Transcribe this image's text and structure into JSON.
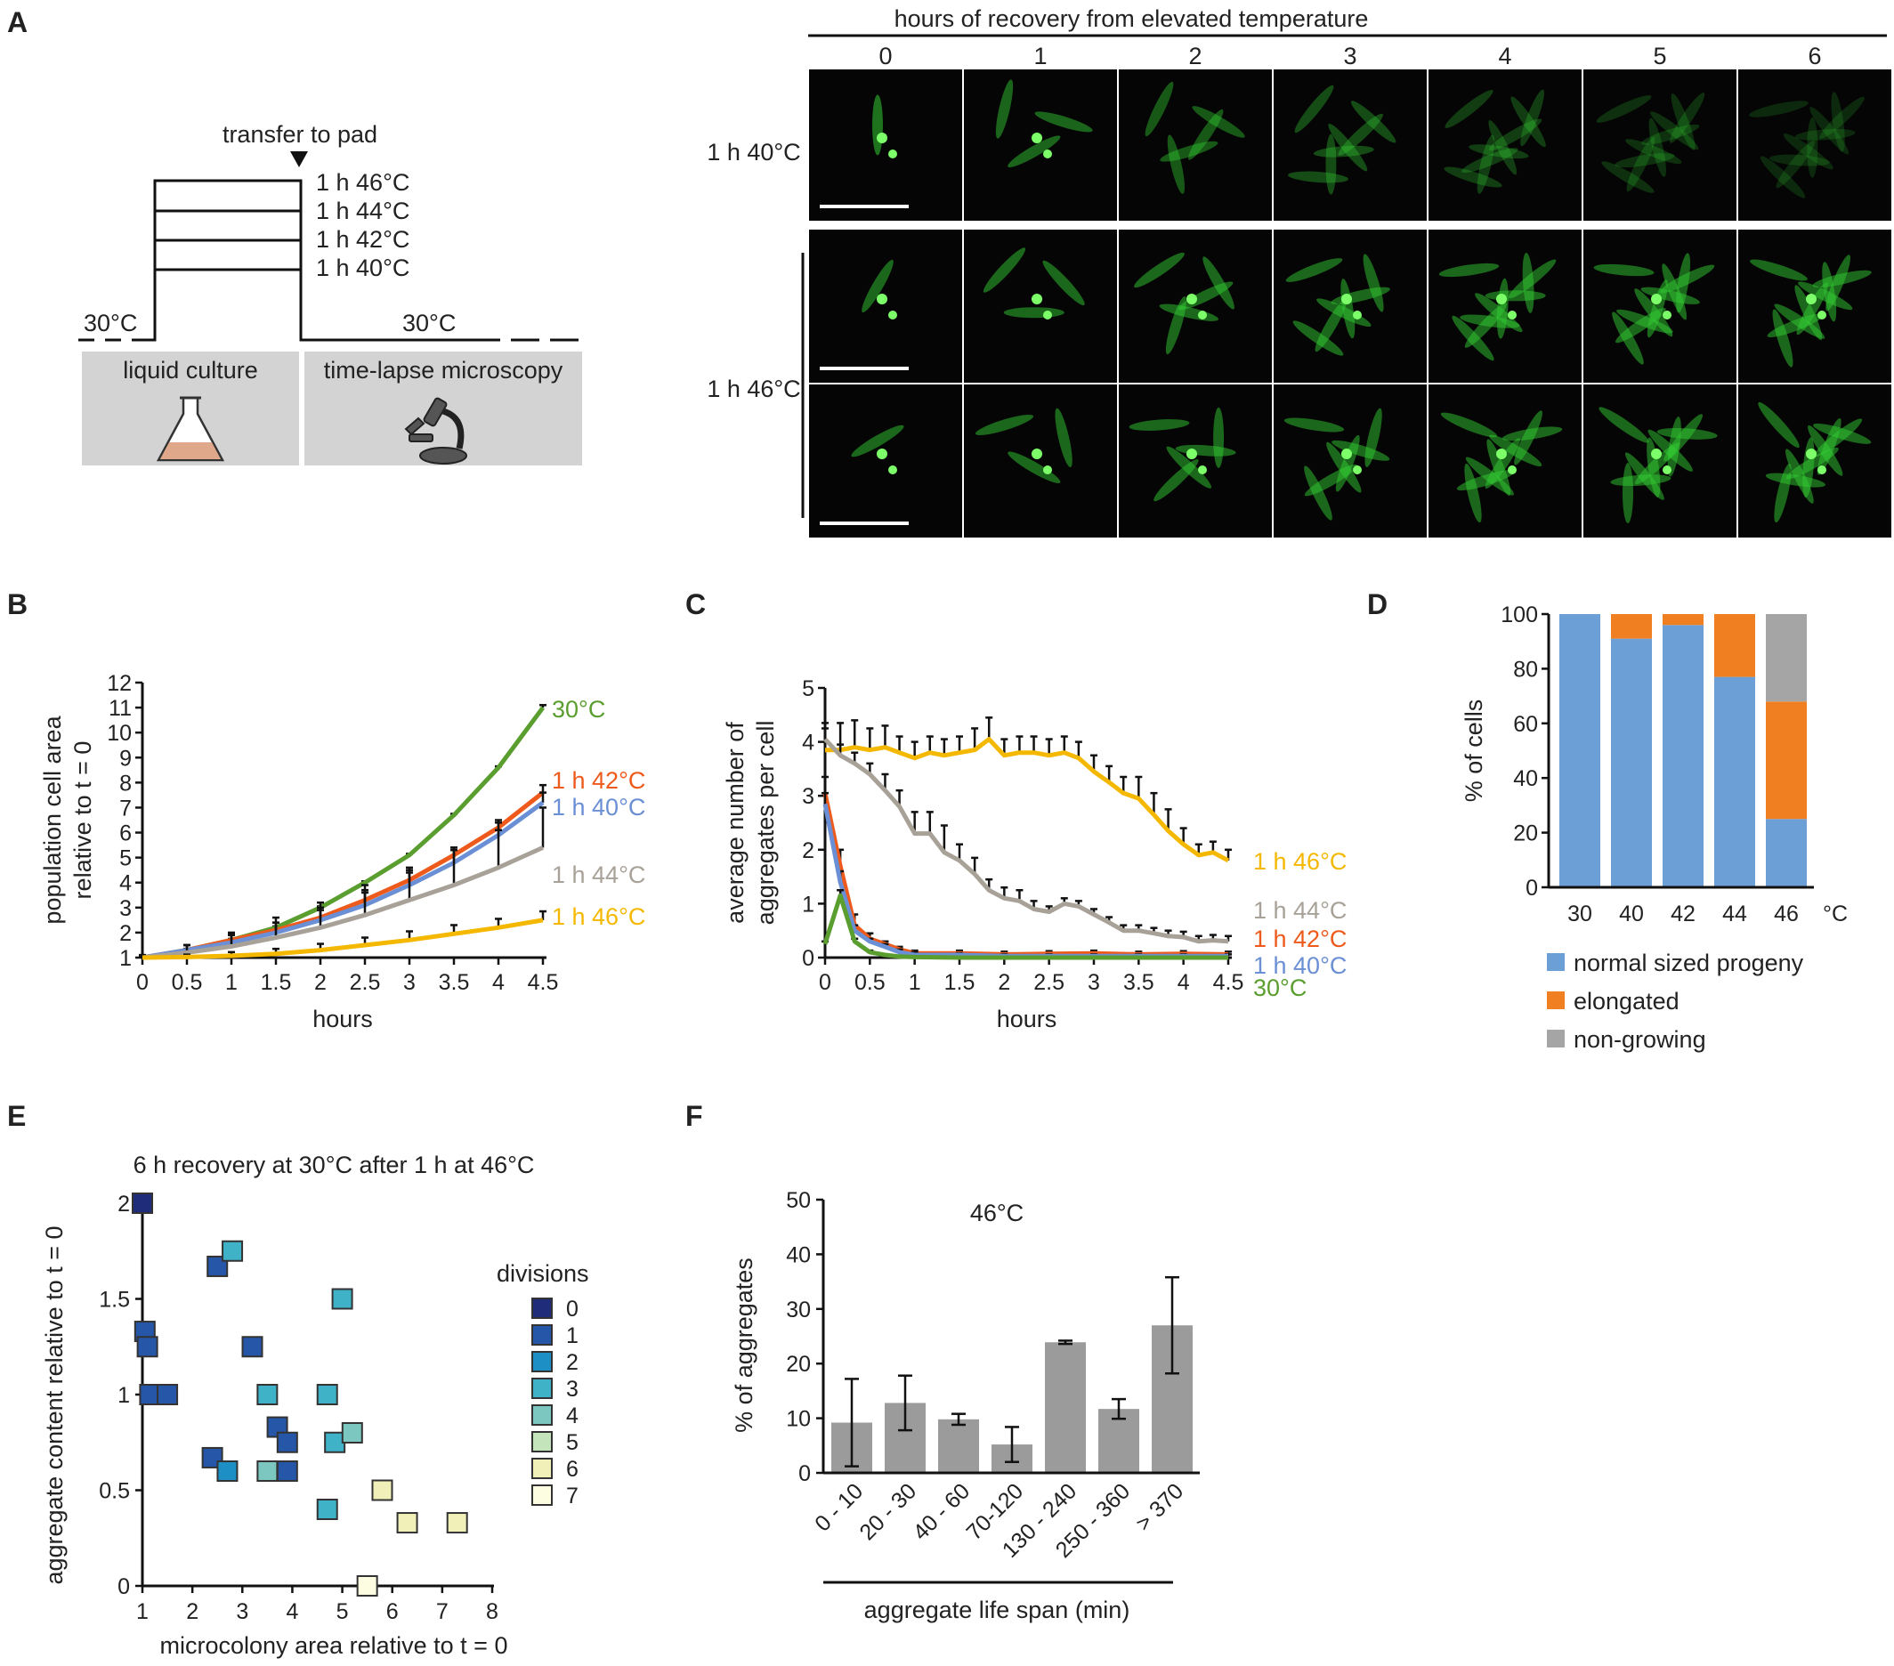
{
  "panel_labels": [
    "A",
    "B",
    "C",
    "D",
    "E",
    "F"
  ],
  "schematic": {
    "transfer_label": "transfer to pad",
    "temps": [
      "1 h 46°C",
      "1 h 44°C",
      "1 h 42°C",
      "1 h 40°C"
    ],
    "baseline_left": "30°C",
    "baseline_right": "30°C",
    "box_left": "liquid culture",
    "box_right": "time-lapse microscopy",
    "icons": [
      "flask-icon",
      "microscope-icon"
    ]
  },
  "micrographs": {
    "header": "hours of recovery from elevated temperature",
    "hours": [
      "0",
      "1",
      "2",
      "3",
      "4",
      "5",
      "6"
    ],
    "row_labels": [
      "1 h 40°C",
      "1 h 46°C"
    ],
    "background": "#050505",
    "cell_color": "#33cc33"
  },
  "chart_data": [
    {
      "panel": "B",
      "type": "line",
      "xlabel": "hours",
      "ylabel": "population cell area\nrelative to t = 0",
      "xlim": [
        0,
        4.5
      ],
      "ylim": [
        1,
        12
      ],
      "xticks": [
        "0",
        "0.5",
        "1",
        "1.5",
        "2",
        "2.5",
        "3",
        "3.5",
        "4",
        "4.5"
      ],
      "yticks": [
        "1",
        "2",
        "3",
        "4",
        "5",
        "6",
        "7",
        "8",
        "9",
        "10",
        "11",
        "12"
      ],
      "series": [
        {
          "name": "30°C",
          "color": "#5a9e2f",
          "x": [
            0,
            0.5,
            1,
            1.5,
            2,
            2.5,
            3,
            3.5,
            4,
            4.5
          ],
          "y": [
            1,
            1.3,
            1.7,
            2.2,
            3,
            4,
            5.1,
            6.7,
            8.6,
            11
          ],
          "err": [
            0.05,
            0.05,
            0.05,
            0.05,
            0.05,
            0.05,
            0.05,
            0.05,
            0.05,
            0.1
          ]
        },
        {
          "name": "1 h 42°C",
          "color": "#ee5a1c",
          "x": [
            0,
            0.5,
            1,
            1.5,
            2,
            2.5,
            3,
            3.5,
            4,
            4.5
          ],
          "y": [
            1,
            1.3,
            1.7,
            2.1,
            2.6,
            3.3,
            4.1,
            5.1,
            6.2,
            7.6
          ],
          "err": [
            0.1,
            0.2,
            0.3,
            0.3,
            0.3,
            0.3,
            0.3,
            0.3,
            0.3,
            0.3
          ]
        },
        {
          "name": "1 h 40°C",
          "color": "#6b8fd4",
          "x": [
            0,
            0.5,
            1,
            1.5,
            2,
            2.5,
            3,
            3.5,
            4,
            4.5
          ],
          "y": [
            1,
            1.3,
            1.6,
            2,
            2.5,
            3.1,
            3.9,
            4.8,
            5.9,
            7.2
          ],
          "err": [
            0.1,
            0.2,
            0.3,
            0.4,
            0.5,
            0.6,
            0.6,
            0.6,
            0.5,
            0.4
          ]
        },
        {
          "name": "1 h 44°C",
          "color": "#a8a198",
          "x": [
            0,
            0.5,
            1,
            1.5,
            2,
            2.5,
            3,
            3.5,
            4,
            4.5
          ],
          "y": [
            1,
            1.2,
            1.45,
            1.8,
            2.2,
            2.7,
            3.3,
            3.9,
            4.6,
            5.4
          ],
          "err": [
            0.1,
            0.3,
            0.5,
            0.8,
            1,
            1.2,
            1.3,
            1.4,
            1.5,
            1.6
          ]
        },
        {
          "name": "1 h 46°C",
          "color": "#f5b800",
          "x": [
            0,
            0.5,
            1,
            1.5,
            2,
            2.5,
            3,
            3.5,
            4,
            4.5
          ],
          "y": [
            1,
            1.02,
            1.07,
            1.15,
            1.3,
            1.5,
            1.7,
            1.95,
            2.2,
            2.5
          ],
          "err": [
            0.05,
            0.1,
            0.15,
            0.2,
            0.25,
            0.3,
            0.35,
            0.35,
            0.35,
            0.35
          ]
        }
      ]
    },
    {
      "panel": "C",
      "type": "line",
      "xlabel": "hours",
      "ylabel": "average number of\naggregates per cell",
      "xlim": [
        0,
        4.5
      ],
      "ylim": [
        0,
        5
      ],
      "xticks": [
        "0",
        "0.5",
        "1",
        "1.5",
        "2",
        "2.5",
        "3",
        "3.5",
        "4",
        "4.5"
      ],
      "yticks": [
        "0",
        "1",
        "2",
        "3",
        "4",
        "5"
      ],
      "series": [
        {
          "name": "1 h 46°C",
          "color": "#f5b800",
          "x": [
            0,
            0.17,
            0.33,
            0.5,
            0.67,
            0.83,
            1,
            1.17,
            1.33,
            1.5,
            1.67,
            1.83,
            2,
            2.17,
            2.33,
            2.5,
            2.67,
            2.83,
            3,
            3.17,
            3.33,
            3.5,
            3.67,
            3.83,
            4,
            4.17,
            4.33,
            4.5
          ],
          "y": [
            3.85,
            3.85,
            3.9,
            3.85,
            3.9,
            3.8,
            3.7,
            3.8,
            3.75,
            3.8,
            3.85,
            4.05,
            3.75,
            3.8,
            3.8,
            3.75,
            3.8,
            3.7,
            3.45,
            3.25,
            3.05,
            2.95,
            2.65,
            2.35,
            2.1,
            1.9,
            1.95,
            1.8
          ],
          "err": [
            0.5,
            0.5,
            0.5,
            0.4,
            0.4,
            0.3,
            0.3,
            0.3,
            0.3,
            0.3,
            0.4,
            0.4,
            0.3,
            0.3,
            0.3,
            0.3,
            0.3,
            0.3,
            0.3,
            0.3,
            0.3,
            0.4,
            0.4,
            0.4,
            0.3,
            0.2,
            0.2,
            0.2
          ]
        },
        {
          "name": "1 h 44°C",
          "color": "#a8a198",
          "x": [
            0,
            0.17,
            0.33,
            0.5,
            0.67,
            0.83,
            1,
            1.17,
            1.33,
            1.5,
            1.67,
            1.83,
            2,
            2.17,
            2.33,
            2.5,
            2.67,
            2.83,
            3,
            3.17,
            3.33,
            3.5,
            3.67,
            3.83,
            4,
            4.17,
            4.33,
            4.5
          ],
          "y": [
            4.05,
            3.75,
            3.6,
            3.4,
            3.1,
            2.8,
            2.3,
            2.3,
            1.95,
            1.8,
            1.55,
            1.25,
            1.1,
            1.05,
            0.9,
            0.85,
            1,
            0.95,
            0.8,
            0.65,
            0.5,
            0.5,
            0.45,
            0.4,
            0.38,
            0.3,
            0.32,
            0.3
          ],
          "err": [
            0.2,
            0.2,
            0.2,
            0.2,
            0.3,
            0.3,
            0.4,
            0.4,
            0.5,
            0.3,
            0.3,
            0.2,
            0.2,
            0.2,
            0.15,
            0.1,
            0.1,
            0.1,
            0.1,
            0.1,
            0.1,
            0.1,
            0.1,
            0.1,
            0.1,
            0.1,
            0.1,
            0.1
          ]
        },
        {
          "name": "1 h 42°C",
          "color": "#ee5a1c",
          "x": [
            0,
            0.17,
            0.33,
            0.5,
            0.67,
            0.83,
            1,
            1.5,
            2,
            2.5,
            3,
            3.5,
            4,
            4.5
          ],
          "y": [
            3.05,
            1.7,
            0.6,
            0.35,
            0.25,
            0.15,
            0.08,
            0.08,
            0.06,
            0.07,
            0.08,
            0.06,
            0.07,
            0.06
          ],
          "err": [
            0.3,
            0.3,
            0.2,
            0.1,
            0.05,
            0.05,
            0.05,
            0.05,
            0.05,
            0.05,
            0.05,
            0.05,
            0.05,
            0.05
          ]
        },
        {
          "name": "1 h 40°C",
          "color": "#6b8fd4",
          "x": [
            0,
            0.17,
            0.33,
            0.5,
            0.67,
            0.83,
            1,
            1.5,
            2,
            2.5,
            3,
            3.5,
            4,
            4.5
          ],
          "y": [
            2.85,
            1.4,
            0.5,
            0.3,
            0.2,
            0.1,
            0.05,
            0.05,
            0.03,
            0.03,
            0.03,
            0.03,
            0.03,
            0.03
          ],
          "err": [
            0.2,
            0.2,
            0.1,
            0.05,
            0.05,
            0.05,
            0.05,
            0.03,
            0.03,
            0.03,
            0.03,
            0.03,
            0.03,
            0.03
          ]
        },
        {
          "name": "30°C",
          "color": "#5a9e2f",
          "x": [
            0,
            0.17,
            0.33,
            0.5,
            0.67,
            0.83,
            1,
            1.5,
            2,
            2.5,
            3,
            3.5,
            4,
            4.5
          ],
          "y": [
            0.25,
            1.15,
            0.3,
            0.1,
            0.05,
            0.02,
            0.01,
            0,
            0,
            0,
            0,
            0,
            0,
            0
          ],
          "err": [
            0.05,
            0.1,
            0.05,
            0.03,
            0.02,
            0.01,
            0,
            0,
            0,
            0,
            0,
            0,
            0,
            0
          ]
        }
      ]
    },
    {
      "panel": "D",
      "type": "bar",
      "stacked": true,
      "categories": [
        "30",
        "40",
        "42",
        "44",
        "46"
      ],
      "unit": "°C",
      "ylabel": "% of cells",
      "ylim": [
        0,
        100
      ],
      "yticks": [
        "0",
        "20",
        "40",
        "60",
        "80",
        "100"
      ],
      "series": [
        {
          "name": "normal sized progeny",
          "color": "#6b9fd6",
          "values": [
            100,
            91,
            96,
            77,
            25
          ]
        },
        {
          "name": "elongated",
          "color": "#f07f21",
          "values": [
            0,
            9,
            4,
            23,
            43
          ]
        },
        {
          "name": "non-growing",
          "color": "#a5a5a5",
          "values": [
            0,
            0,
            0,
            0,
            32
          ]
        }
      ]
    },
    {
      "panel": "E",
      "type": "scatter",
      "title": "6 h recovery at 30°C after 1 h at 46°C",
      "xlabel": "microcolony area relative to t = 0",
      "ylabel": "aggregate content relative to t = 0",
      "xlim": [
        1,
        8
      ],
      "ylim": [
        0,
        2
      ],
      "xticks": [
        "1",
        "2",
        "3",
        "4",
        "5",
        "6",
        "7",
        "8"
      ],
      "yticks": [
        "0",
        "0.5",
        "1",
        "1.5",
        "2"
      ],
      "legend_title": "divisions",
      "legend": [
        "0",
        "1",
        "2",
        "3",
        "4",
        "5",
        "6",
        "7"
      ],
      "colors": [
        "#1f2c7a",
        "#2656a8",
        "#1d8fc4",
        "#3fb2c8",
        "#7cc8c0",
        "#c4e4bc",
        "#f0f0b8",
        "#fdfde2"
      ],
      "points": [
        {
          "x": 1,
          "y": 2,
          "d": 0
        },
        {
          "x": 1.05,
          "y": 1.33,
          "d": 1
        },
        {
          "x": 1.1,
          "y": 1.25,
          "d": 1
        },
        {
          "x": 1.15,
          "y": 1,
          "d": 1
        },
        {
          "x": 1.5,
          "y": 1,
          "d": 1
        },
        {
          "x": 2.5,
          "y": 1.67,
          "d": 1
        },
        {
          "x": 2.4,
          "y": 0.67,
          "d": 1
        },
        {
          "x": 3.2,
          "y": 1.25,
          "d": 1
        },
        {
          "x": 3.7,
          "y": 0.83,
          "d": 1
        },
        {
          "x": 3.9,
          "y": 0.75,
          "d": 1
        },
        {
          "x": 3.9,
          "y": 0.6,
          "d": 1
        },
        {
          "x": 2.8,
          "y": 1.75,
          "d": 3
        },
        {
          "x": 2.7,
          "y": 0.6,
          "d": 2
        },
        {
          "x": 3.5,
          "y": 1,
          "d": 3
        },
        {
          "x": 4.7,
          "y": 1,
          "d": 3
        },
        {
          "x": 5,
          "y": 1.5,
          "d": 3
        },
        {
          "x": 4.85,
          "y": 0.75,
          "d": 3
        },
        {
          "x": 4.7,
          "y": 0.4,
          "d": 3
        },
        {
          "x": 3.5,
          "y": 0.6,
          "d": 4
        },
        {
          "x": 5.2,
          "y": 0.8,
          "d": 4
        },
        {
          "x": 5.8,
          "y": 0.5,
          "d": 6
        },
        {
          "x": 6.3,
          "y": 0.33,
          "d": 6
        },
        {
          "x": 7.3,
          "y": 0.33,
          "d": 6
        },
        {
          "x": 5.5,
          "y": 0,
          "d": 7
        }
      ]
    },
    {
      "panel": "F",
      "type": "bar",
      "title": "46°C",
      "categories": [
        "0 - 10",
        "20 - 30",
        "40 - 60",
        "70-120",
        "130 - 240",
        "250 - 360",
        "> 370"
      ],
      "values": [
        9.2,
        12.8,
        9.8,
        5.2,
        23.9,
        11.7,
        27
      ],
      "err": [
        8,
        5,
        1,
        3.2,
        0.3,
        1.8,
        8.8
      ],
      "color": "#9b9b9b",
      "ylabel": "% of aggregates",
      "xlabel": "aggregate life span (min)",
      "ylim": [
        0,
        50
      ],
      "yticks": [
        "0",
        "10",
        "20",
        "30",
        "40",
        "50"
      ]
    }
  ]
}
